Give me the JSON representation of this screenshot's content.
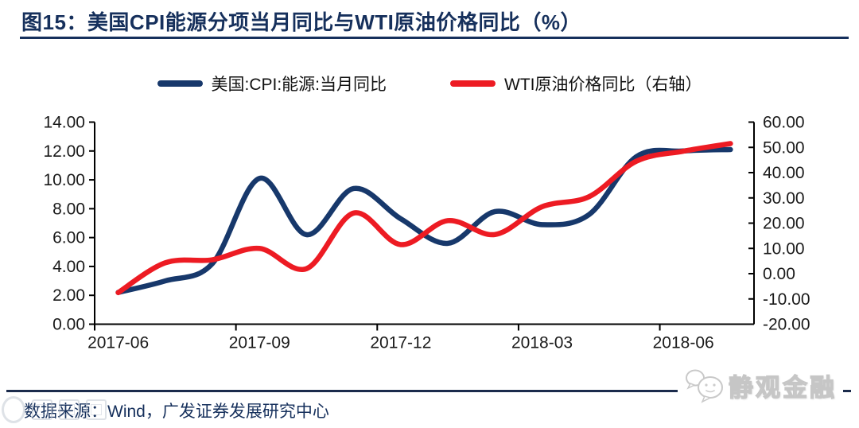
{
  "title": "图15：美国CPI能源分项当月同比与WTI原油价格同比（%）",
  "footer": {
    "source_note": "数据来源：Wind，广发证券发展研究中心"
  },
  "brand_watermark": "静观金融",
  "colors": {
    "navy_text": "#16305C",
    "cpi_line": "#17386B",
    "wti_line": "#ED1B23",
    "axis": "#000000",
    "tick_label": "#1a1a1a"
  },
  "legend": [
    {
      "label": "美国:CPI:能源:当月同比",
      "color": "#17386B"
    },
    {
      "label": "WTI原油价格同比（右轴）",
      "color": "#ED1B23"
    }
  ],
  "chart_data": {
    "type": "line",
    "title": "图15：美国CPI能源分项当月同比与WTI原油价格同比（%）",
    "smoothed": true,
    "grid": false,
    "legend_position": "top",
    "x": [
      "2017-06",
      "2017-07",
      "2017-08",
      "2017-09",
      "2017-10",
      "2017-11",
      "2017-12",
      "2018-01",
      "2018-02",
      "2018-03",
      "2018-04",
      "2018-05",
      "2018-06",
      "2018-07"
    ],
    "series": [
      {
        "name": "美国:CPI:能源:当月同比",
        "axis": "left",
        "color": "#17386B",
        "values": [
          2.2,
          3.0,
          4.2,
          10.1,
          6.2,
          9.4,
          7.3,
          5.6,
          7.8,
          6.9,
          7.6,
          11.6,
          12.0,
          12.1
        ]
      },
      {
        "name": "WTI原油价格同比（右轴）",
        "axis": "right",
        "color": "#ED1B23",
        "values": [
          -7.5,
          4.3,
          5.5,
          10.0,
          2.0,
          24.0,
          11.5,
          21.0,
          15.5,
          26.5,
          30.5,
          44.5,
          48.5,
          51.5
        ]
      }
    ],
    "left_axis": {
      "min": 0,
      "max": 14,
      "step": 2,
      "ticks": [
        {
          "value": 14,
          "label": "14.00"
        },
        {
          "value": 12,
          "label": "12.00"
        },
        {
          "value": 10,
          "label": "10.00"
        },
        {
          "value": 8,
          "label": "8.00"
        },
        {
          "value": 6,
          "label": "6.00"
        },
        {
          "value": 4,
          "label": "4.00"
        },
        {
          "value": 2,
          "label": "2.00"
        },
        {
          "value": 0,
          "label": "0.00"
        }
      ]
    },
    "right_axis": {
      "min": -20,
      "max": 60,
      "step": 10,
      "ticks": [
        {
          "value": 60,
          "label": "60.00"
        },
        {
          "value": 50,
          "label": "50.00"
        },
        {
          "value": 40,
          "label": "40.00"
        },
        {
          "value": 30,
          "label": "30.00"
        },
        {
          "value": 20,
          "label": "20.00"
        },
        {
          "value": 10,
          "label": "10.00"
        },
        {
          "value": 0,
          "label": "0.00"
        },
        {
          "value": -10,
          "label": "-10.00"
        },
        {
          "value": -20,
          "label": "-20.00"
        }
      ]
    },
    "x_ticks": [
      {
        "index": 0,
        "label": "2017-06"
      },
      {
        "index": 3,
        "label": "2017-09"
      },
      {
        "index": 6,
        "label": "2017-12"
      },
      {
        "index": 9,
        "label": "2018-03"
      },
      {
        "index": 12,
        "label": "2018-06"
      }
    ]
  }
}
